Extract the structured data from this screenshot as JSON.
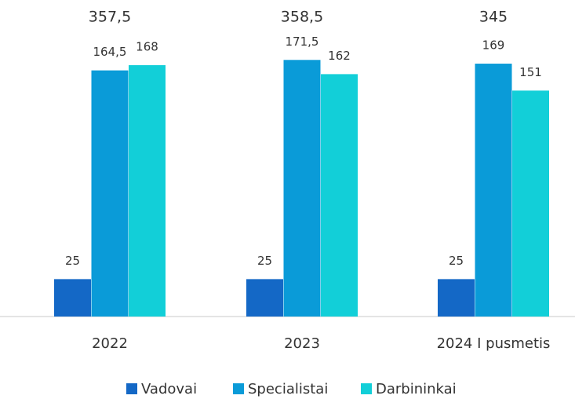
{
  "chart_data": {
    "type": "bar",
    "categories": [
      "2022",
      "2023",
      "2024 I pusmetis"
    ],
    "series": [
      {
        "name": "Vadovai",
        "color": "#1468c6",
        "values": [
          25,
          25,
          25
        ],
        "value_labels": [
          "25",
          "25",
          "25"
        ]
      },
      {
        "name": "Specialistai",
        "color": "#0a9bd8",
        "values": [
          164.5,
          171.5,
          169
        ],
        "value_labels": [
          "164,5",
          "171,5",
          "169"
        ]
      },
      {
        "name": "Darbininkai",
        "color": "#12cfd8",
        "values": [
          168,
          162,
          151
        ],
        "value_labels": [
          "168",
          "162",
          "151"
        ]
      }
    ],
    "totals": [
      357.5,
      358.5,
      345
    ],
    "total_labels": [
      "357,5",
      "358,5",
      "345"
    ]
  }
}
